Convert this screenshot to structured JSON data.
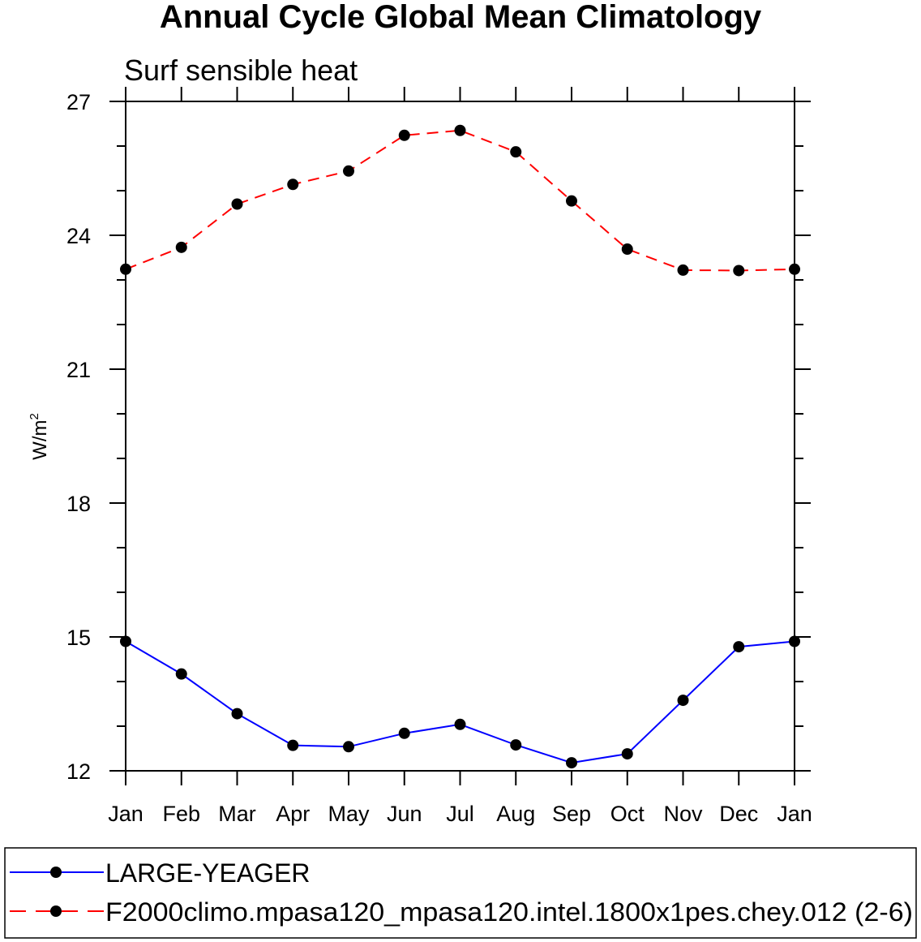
{
  "chart_data": {
    "type": "line",
    "title": "Annual Cycle Global Mean Climatology",
    "subtitle": "Surf sensible heat",
    "ylabel": "W/m",
    "ylabel_superscript": "2",
    "xlabel": "",
    "categories": [
      "Jan",
      "Feb",
      "Mar",
      "Apr",
      "May",
      "Jun",
      "Jul",
      "Aug",
      "Sep",
      "Oct",
      "Nov",
      "Dec",
      "Jan"
    ],
    "ylim": [
      12,
      27
    ],
    "yticks": [
      "12",
      "15",
      "18",
      "21",
      "24",
      "27"
    ],
    "grid": false,
    "legend_position": "bottom",
    "series": [
      {
        "name": "LARGE-YEAGER",
        "color": "#0000ff",
        "dash": "solid",
        "values": [
          14.9,
          14.17,
          13.28,
          12.57,
          12.54,
          12.84,
          13.04,
          12.58,
          12.18,
          12.38,
          13.58,
          14.78,
          14.9
        ]
      },
      {
        "name": "F2000climo.mpasa120_mpasa120.intel.1800x1pes.chey.012 (2-6)",
        "color": "#ff0000",
        "dash": "dashed",
        "values": [
          23.24,
          23.73,
          24.7,
          25.14,
          25.44,
          26.24,
          26.35,
          25.87,
          24.77,
          23.69,
          23.22,
          23.21,
          23.24
        ]
      }
    ]
  }
}
